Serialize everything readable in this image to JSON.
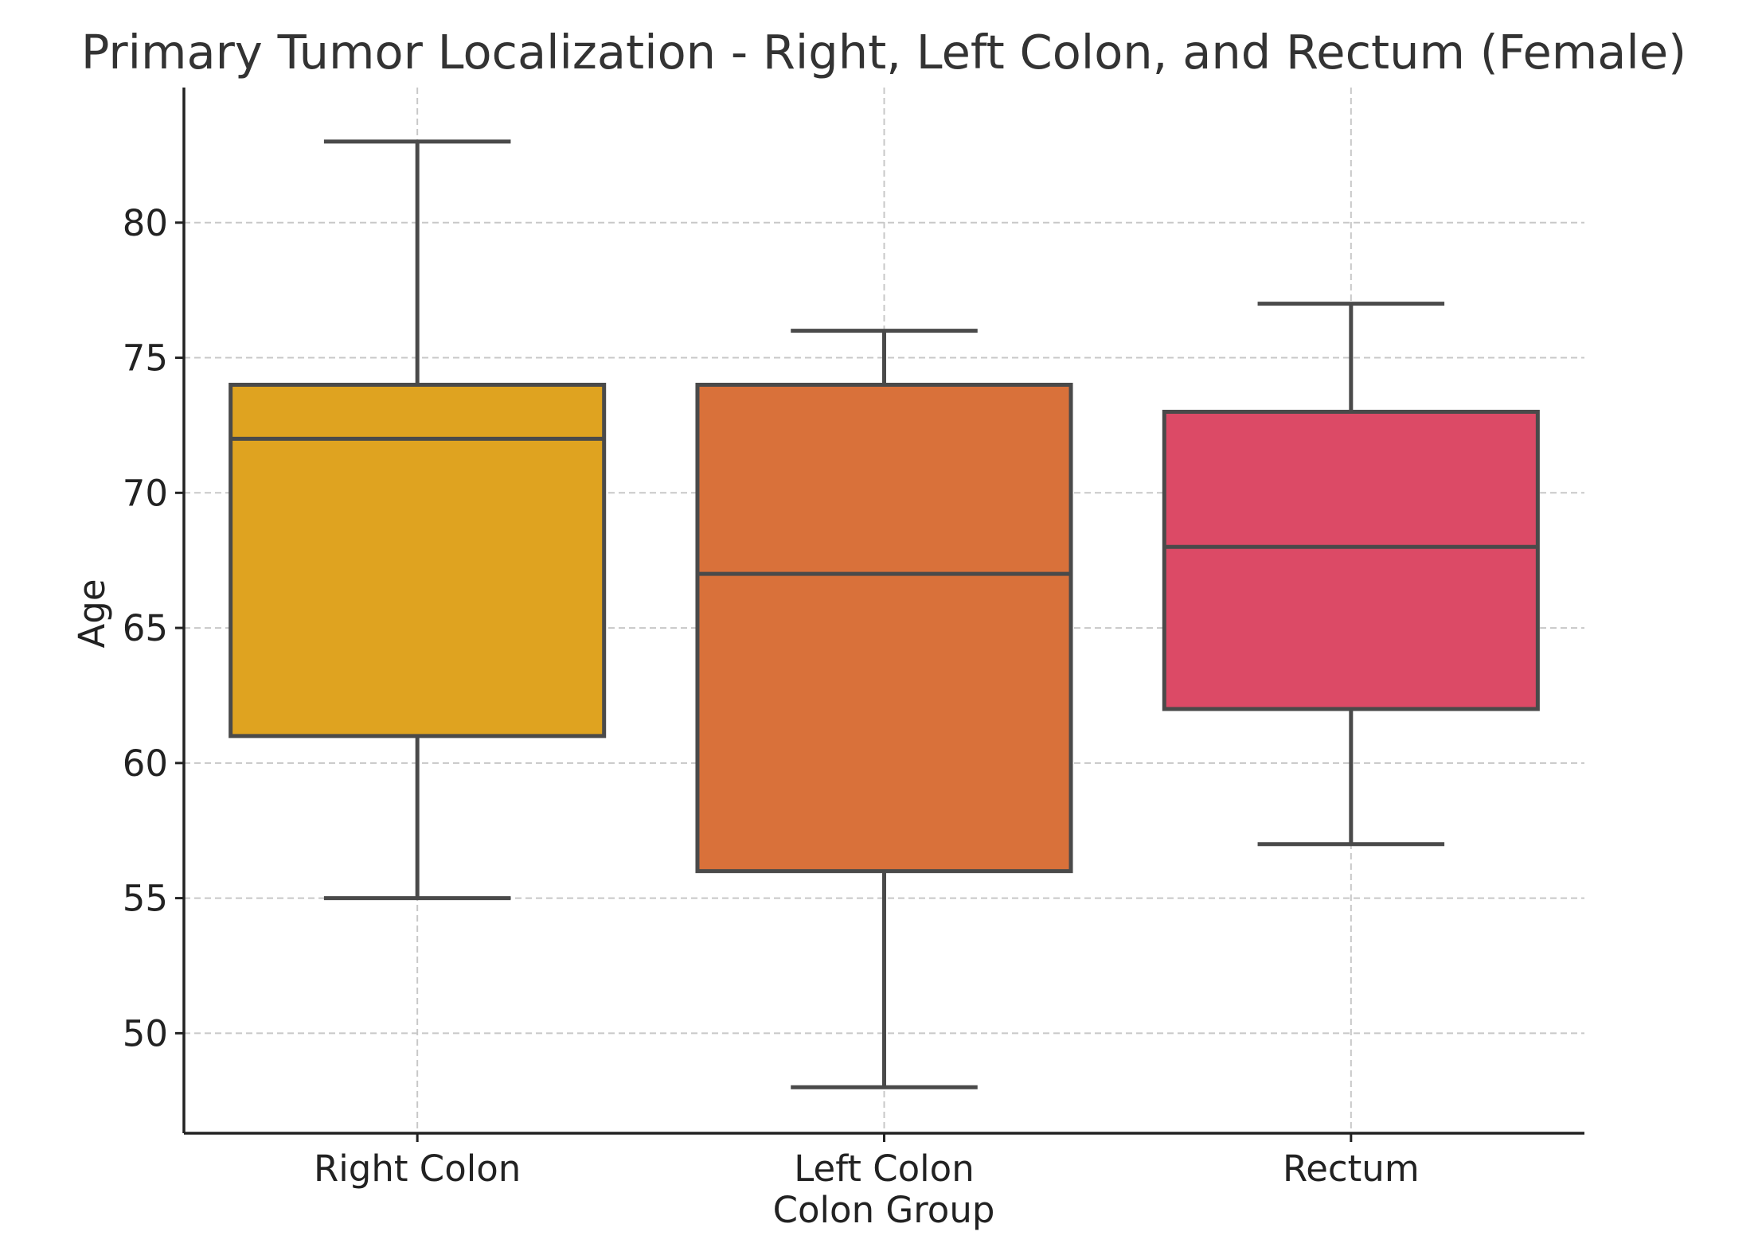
{
  "chart_data": {
    "type": "box",
    "title": "Primary Tumor Localization - Right, Left Colon, and Rectum (Female)",
    "xlabel": "Colon Group",
    "ylabel": "Age",
    "ylim": [
      46.3,
      85.0
    ],
    "yticks": [
      50,
      55,
      60,
      65,
      70,
      75,
      80
    ],
    "categories": [
      "Right Colon",
      "Left Colon",
      "Rectum"
    ],
    "boxes": [
      {
        "category": "Right Colon",
        "whisker_low": 55,
        "q1": 61,
        "median": 72,
        "q3": 74,
        "whisker_high": 83,
        "color": "#dfa320"
      },
      {
        "category": "Left Colon",
        "whisker_low": 48,
        "q1": 56,
        "median": 67,
        "q3": 74,
        "whisker_high": 76,
        "color": "#d9713a"
      },
      {
        "category": "Rectum",
        "whisker_low": 57,
        "q1": 62,
        "median": 68,
        "q3": 73,
        "whisker_high": 77,
        "color": "#dc4a66"
      }
    ],
    "grid": true,
    "legend": "none",
    "edge_color": "#4a4a4a"
  }
}
